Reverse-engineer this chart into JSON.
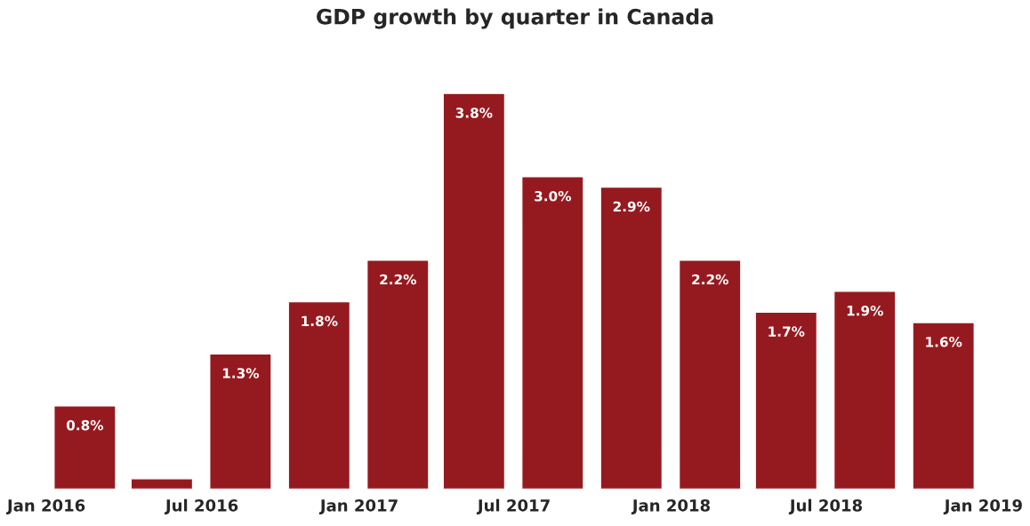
{
  "chart_data": {
    "type": "bar",
    "title": "GDP growth by quarter in Canada",
    "x": [
      "2016-02-15",
      "2016-05-15",
      "2016-08-15",
      "2016-11-15",
      "2017-02-15",
      "2017-05-15",
      "2017-08-15",
      "2017-11-15",
      "2018-02-15",
      "2018-05-15",
      "2018-08-15",
      "2018-11-15"
    ],
    "values": [
      0.8,
      0.1,
      1.3,
      1.8,
      2.2,
      3.8,
      3.0,
      2.9,
      2.2,
      1.7,
      1.9,
      1.6
    ],
    "value_labels": [
      "0.8%",
      null,
      "1.3%",
      "1.8%",
      "2.2%",
      "3.8%",
      "3.0%",
      "2.9%",
      "2.2%",
      "1.7%",
      "1.9%",
      "1.6%"
    ],
    "color": "#951a1f",
    "xlim": [
      "2016-01-01",
      "2019-01-01"
    ],
    "xticks": [
      {
        "value": "2016-01-01",
        "label": "Jan 2016"
      },
      {
        "value": "2016-07-01",
        "label": "Jul 2016"
      },
      {
        "value": "2017-01-01",
        "label": "Jan 2017"
      },
      {
        "value": "2017-07-01",
        "label": "Jul 2017"
      },
      {
        "value": "2018-01-01",
        "label": "Jan 2018"
      },
      {
        "value": "2018-07-01",
        "label": "Jul 2018"
      },
      {
        "value": "2019-01-01",
        "label": "Jan 2019"
      }
    ],
    "grid": false,
    "legend": false
  }
}
